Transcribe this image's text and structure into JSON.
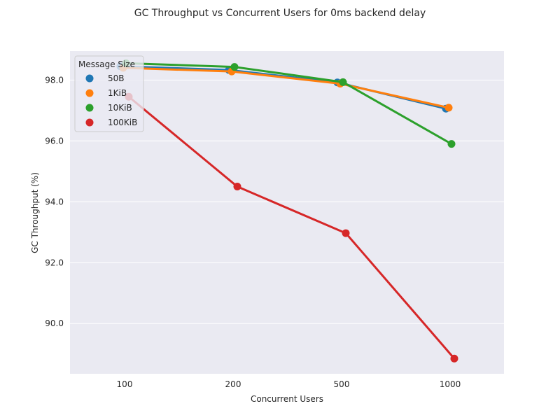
{
  "chart_data": {
    "type": "line",
    "title": "GC Throughput vs Concurrent Users for 0ms backend delay",
    "xlabel": "Concurrent Users",
    "ylabel": "GC Throughput (%)",
    "categories": [
      "100",
      "200",
      "500",
      "1000"
    ],
    "ylim": [
      88.35,
      98.95
    ],
    "yticks": [
      90.0,
      92.0,
      94.0,
      96.0,
      98.0
    ],
    "ytick_labels": [
      "90.0",
      "92.0",
      "94.0",
      "96.0",
      "98.0"
    ],
    "grid": true,
    "legend": {
      "title": "Message Size",
      "placement": "top-left"
    },
    "background": "#eaeaf2",
    "series": [
      {
        "name": "50B",
        "color": "#1f77b4",
        "values": [
          98.45,
          98.33,
          97.92,
          97.06
        ]
      },
      {
        "name": "1KiB",
        "color": "#ff7f0e",
        "values": [
          98.4,
          98.28,
          97.88,
          97.09
        ]
      },
      {
        "name": "10KiB",
        "color": "#2ca02c",
        "values": [
          98.55,
          98.43,
          97.93,
          95.9
        ]
      },
      {
        "name": "100KiB",
        "color": "#d62728",
        "values": [
          97.45,
          94.5,
          92.97,
          88.85
        ]
      }
    ]
  }
}
